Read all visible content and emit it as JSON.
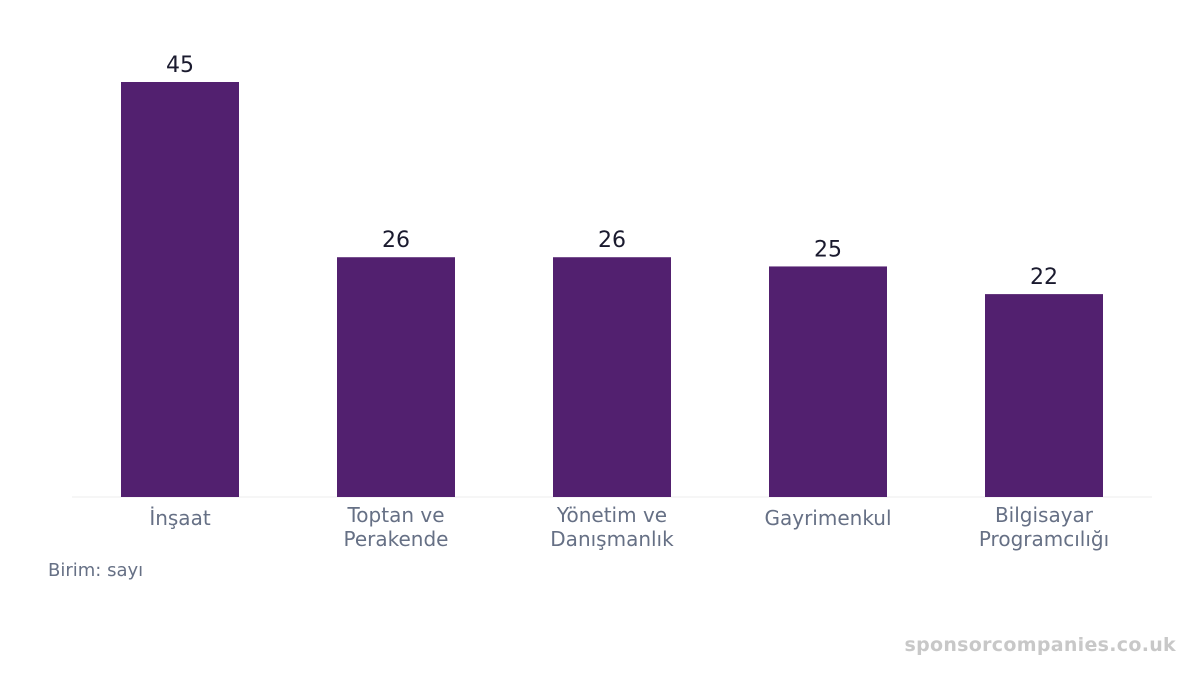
{
  "chart_data": {
    "type": "bar",
    "categories": [
      [
        "İnşaat"
      ],
      [
        "Toptan ve",
        "Perakende"
      ],
      [
        "Yönetim ve",
        "Danışmanlık"
      ],
      [
        "Gayrimenkul"
      ],
      [
        "Bilgisayar",
        "Programcılığı"
      ]
    ],
    "values": [
      45,
      26,
      26,
      25,
      22
    ],
    "ylim": [
      0,
      45
    ],
    "bar_color": "#52206f",
    "grid": false,
    "title": "",
    "xlabel": "",
    "ylabel": ""
  },
  "unit_note": "Birim: sayı",
  "watermark": "sponsorcompanies.co.uk"
}
